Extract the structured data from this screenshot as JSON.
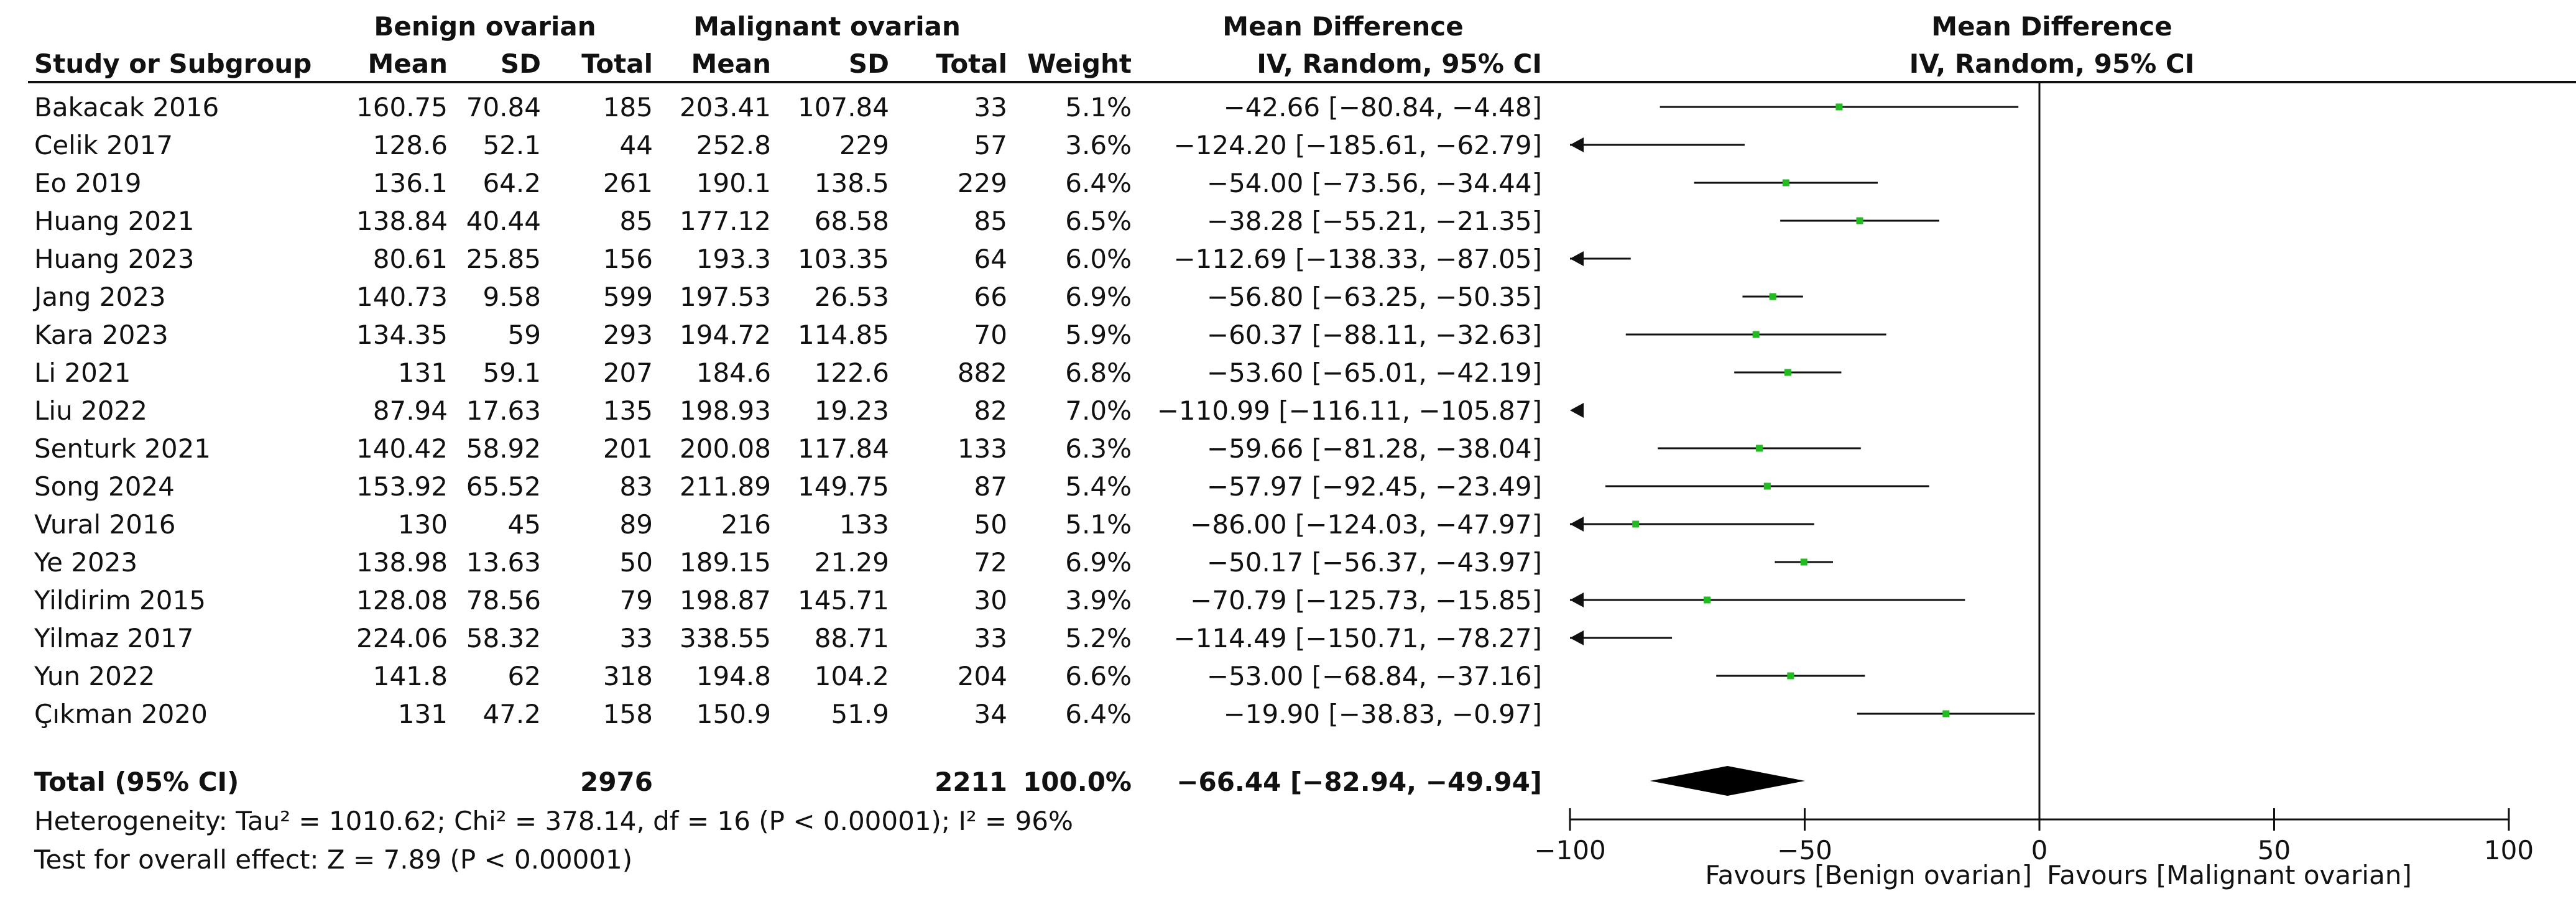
{
  "header": {
    "group1": "Benign ovarian",
    "group2": "Malignant ovarian",
    "study_col": "Study or Subgroup",
    "mean": "Mean",
    "sd": "SD",
    "total": "Total",
    "weight": "Weight",
    "md_title": "Mean Difference",
    "md_method": "IV, Random, 95% CI",
    "plot_title": "Mean Difference",
    "plot_method": "IV, Random, 95% CI"
  },
  "studies": [
    {
      "name": "Bakacak 2016",
      "b_mean": "160.75",
      "b_sd": "70.84",
      "b_total": "185",
      "m_mean": "203.41",
      "m_sd": "107.84",
      "m_total": "33",
      "weight": "5.1%",
      "ci_text": "−42.66 [−80.84, −4.48]"
    },
    {
      "name": "Celik 2017",
      "b_mean": "128.6",
      "b_sd": "52.1",
      "b_total": "44",
      "m_mean": "252.8",
      "m_sd": "229",
      "m_total": "57",
      "weight": "3.6%",
      "ci_text": "−124.20 [−185.61, −62.79]"
    },
    {
      "name": "Eo 2019",
      "b_mean": "136.1",
      "b_sd": "64.2",
      "b_total": "261",
      "m_mean": "190.1",
      "m_sd": "138.5",
      "m_total": "229",
      "weight": "6.4%",
      "ci_text": "−54.00 [−73.56, −34.44]"
    },
    {
      "name": "Huang 2021",
      "b_mean": "138.84",
      "b_sd": "40.44",
      "b_total": "85",
      "m_mean": "177.12",
      "m_sd": "68.58",
      "m_total": "85",
      "weight": "6.5%",
      "ci_text": "−38.28 [−55.21, −21.35]"
    },
    {
      "name": "Huang 2023",
      "b_mean": "80.61",
      "b_sd": "25.85",
      "b_total": "156",
      "m_mean": "193.3",
      "m_sd": "103.35",
      "m_total": "64",
      "weight": "6.0%",
      "ci_text": "−112.69 [−138.33, −87.05]"
    },
    {
      "name": "Jang 2023",
      "b_mean": "140.73",
      "b_sd": "9.58",
      "b_total": "599",
      "m_mean": "197.53",
      "m_sd": "26.53",
      "m_total": "66",
      "weight": "6.9%",
      "ci_text": "−56.80 [−63.25, −50.35]"
    },
    {
      "name": "Kara 2023",
      "b_mean": "134.35",
      "b_sd": "59",
      "b_total": "293",
      "m_mean": "194.72",
      "m_sd": "114.85",
      "m_total": "70",
      "weight": "5.9%",
      "ci_text": "−60.37 [−88.11, −32.63]"
    },
    {
      "name": "Li 2021",
      "b_mean": "131",
      "b_sd": "59.1",
      "b_total": "207",
      "m_mean": "184.6",
      "m_sd": "122.6",
      "m_total": "882",
      "weight": "6.8%",
      "ci_text": "−53.60 [−65.01, −42.19]"
    },
    {
      "name": "Liu 2022",
      "b_mean": "87.94",
      "b_sd": "17.63",
      "b_total": "135",
      "m_mean": "198.93",
      "m_sd": "19.23",
      "m_total": "82",
      "weight": "7.0%",
      "ci_text": "−110.99 [−116.11, −105.87]"
    },
    {
      "name": "Senturk 2021",
      "b_mean": "140.42",
      "b_sd": "58.92",
      "b_total": "201",
      "m_mean": "200.08",
      "m_sd": "117.84",
      "m_total": "133",
      "weight": "6.3%",
      "ci_text": "−59.66 [−81.28, −38.04]"
    },
    {
      "name": "Song 2024",
      "b_mean": "153.92",
      "b_sd": "65.52",
      "b_total": "83",
      "m_mean": "211.89",
      "m_sd": "149.75",
      "m_total": "87",
      "weight": "5.4%",
      "ci_text": "−57.97 [−92.45, −23.49]"
    },
    {
      "name": "Vural 2016",
      "b_mean": "130",
      "b_sd": "45",
      "b_total": "89",
      "m_mean": "216",
      "m_sd": "133",
      "m_total": "50",
      "weight": "5.1%",
      "ci_text": "−86.00 [−124.03, −47.97]"
    },
    {
      "name": "Ye 2023",
      "b_mean": "138.98",
      "b_sd": "13.63",
      "b_total": "50",
      "m_mean": "189.15",
      "m_sd": "21.29",
      "m_total": "72",
      "weight": "6.9%",
      "ci_text": "−50.17 [−56.37, −43.97]"
    },
    {
      "name": "Yildirim 2015",
      "b_mean": "128.08",
      "b_sd": "78.56",
      "b_total": "79",
      "m_mean": "198.87",
      "m_sd": "145.71",
      "m_total": "30",
      "weight": "3.9%",
      "ci_text": "−70.79 [−125.73, −15.85]"
    },
    {
      "name": "Yilmaz 2017",
      "b_mean": "224.06",
      "b_sd": "58.32",
      "b_total": "33",
      "m_mean": "338.55",
      "m_sd": "88.71",
      "m_total": "33",
      "weight": "5.2%",
      "ci_text": "−114.49 [−150.71, −78.27]"
    },
    {
      "name": "Yun 2022",
      "b_mean": "141.8",
      "b_sd": "62",
      "b_total": "318",
      "m_mean": "194.8",
      "m_sd": "104.2",
      "m_total": "204",
      "weight": "6.6%",
      "ci_text": "−53.00 [−68.84, −37.16]"
    },
    {
      "name": "Çıkman 2020",
      "b_mean": "131",
      "b_sd": "47.2",
      "b_total": "158",
      "m_mean": "150.9",
      "m_sd": "51.9",
      "m_total": "34",
      "weight": "6.4%",
      "ci_text": "−19.90 [−38.83, −0.97]"
    }
  ],
  "total": {
    "label": "Total (95% CI)",
    "b_total": "2976",
    "m_total": "2211",
    "weight": "100.0%",
    "ci_text": "−66.44 [−82.94, −49.94]"
  },
  "footer": {
    "heterogeneity": "Heterogeneity: Tau² = 1010.62; Chi² = 378.14, df = 16 (P < 0.00001); I² = 96%",
    "overall": "Test for overall effect: Z = 7.89 (P < 0.00001)"
  },
  "axis": {
    "tick_labels": [
      "−100",
      "−50",
      "0",
      "50",
      "100"
    ],
    "favours_left": "Favours [Benign ovarian]",
    "favours_right": "Favours [Malignant ovarian]"
  },
  "colors": {
    "marker": "#22bb22",
    "line": "#111111",
    "diamond": "#000000"
  },
  "chart_data": {
    "type": "forest",
    "effect_measure": "Mean Difference (IV, Random, 95% CI)",
    "xlim": [
      -100,
      100
    ],
    "ticks": [
      -100,
      -50,
      0,
      50,
      100
    ],
    "studies": [
      {
        "name": "Bakacak 2016",
        "md": -42.66,
        "lo": -80.84,
        "hi": -4.48,
        "weight": 5.1
      },
      {
        "name": "Celik 2017",
        "md": -124.2,
        "lo": -185.61,
        "hi": -62.79,
        "weight": 3.6
      },
      {
        "name": "Eo 2019",
        "md": -54.0,
        "lo": -73.56,
        "hi": -34.44,
        "weight": 6.4
      },
      {
        "name": "Huang 2021",
        "md": -38.28,
        "lo": -55.21,
        "hi": -21.35,
        "weight": 6.5
      },
      {
        "name": "Huang 2023",
        "md": -112.69,
        "lo": -138.33,
        "hi": -87.05,
        "weight": 6.0
      },
      {
        "name": "Jang 2023",
        "md": -56.8,
        "lo": -63.25,
        "hi": -50.35,
        "weight": 6.9
      },
      {
        "name": "Kara 2023",
        "md": -60.37,
        "lo": -88.11,
        "hi": -32.63,
        "weight": 5.9
      },
      {
        "name": "Li 2021",
        "md": -53.6,
        "lo": -65.01,
        "hi": -42.19,
        "weight": 6.8
      },
      {
        "name": "Liu 2022",
        "md": -110.99,
        "lo": -116.11,
        "hi": -105.87,
        "weight": 7.0
      },
      {
        "name": "Senturk 2021",
        "md": -59.66,
        "lo": -81.28,
        "hi": -38.04,
        "weight": 6.3
      },
      {
        "name": "Song 2024",
        "md": -57.97,
        "lo": -92.45,
        "hi": -23.49,
        "weight": 5.4
      },
      {
        "name": "Vural 2016",
        "md": -86.0,
        "lo": -124.03,
        "hi": -47.97,
        "weight": 5.1
      },
      {
        "name": "Ye 2023",
        "md": -50.17,
        "lo": -56.37,
        "hi": -43.97,
        "weight": 6.9
      },
      {
        "name": "Yildirim 2015",
        "md": -70.79,
        "lo": -125.73,
        "hi": -15.85,
        "weight": 3.9
      },
      {
        "name": "Yilmaz 2017",
        "md": -114.49,
        "lo": -150.71,
        "hi": -78.27,
        "weight": 5.2
      },
      {
        "name": "Yun 2022",
        "md": -53.0,
        "lo": -68.84,
        "hi": -37.16,
        "weight": 6.6
      },
      {
        "name": "Çıkman 2020",
        "md": -19.9,
        "lo": -38.83,
        "hi": -0.97,
        "weight": 6.4
      }
    ],
    "pooled": {
      "md": -66.44,
      "lo": -82.94,
      "hi": -49.94
    }
  }
}
